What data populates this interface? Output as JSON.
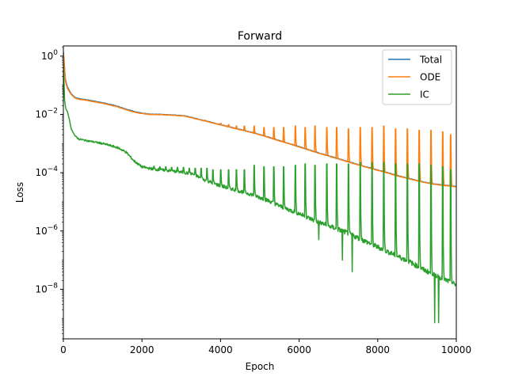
{
  "chart_data": {
    "type": "line",
    "title": "Forward",
    "xlabel": "Epoch",
    "ylabel": "Loss",
    "xlim": [
      0,
      10000
    ],
    "ylim_log10": [
      -9.7,
      0.35
    ],
    "yscale": "log",
    "grid": false,
    "legend_placement": "top-right",
    "x_ticks": [
      {
        "value": 0,
        "label": "0"
      },
      {
        "value": 2000,
        "label": "2000"
      },
      {
        "value": 4000,
        "label": "4000"
      },
      {
        "value": 6000,
        "label": "6000"
      },
      {
        "value": 8000,
        "label": "8000"
      },
      {
        "value": 10000,
        "label": "10000"
      }
    ],
    "y_ticks": [
      {
        "exp": 0,
        "base": "10",
        "sup": "0"
      },
      {
        "exp": -2,
        "base": "10",
        "sup": "−2"
      },
      {
        "exp": -4,
        "base": "10",
        "sup": "−4"
      },
      {
        "exp": -6,
        "base": "10",
        "sup": "−6"
      },
      {
        "exp": -8,
        "base": "10",
        "sup": "−8"
      }
    ],
    "series": [
      {
        "name": "Total",
        "color": "#1f77b4",
        "x": [
          0,
          50,
          100,
          200,
          300,
          400,
          600,
          800,
          1000,
          1200,
          1400,
          1600,
          1800,
          2000,
          2200,
          2500,
          2800,
          3100,
          3400,
          3700,
          4000,
          4300,
          4600,
          4900,
          5200,
          5500,
          5800,
          6100,
          6400,
          6700,
          7000,
          7300,
          7600,
          7900,
          8200,
          8500,
          8800,
          9100,
          9400,
          9700,
          10000
        ],
        "log10_y": [
          0.15,
          -0.8,
          -1.05,
          -1.3,
          -1.42,
          -1.46,
          -1.5,
          -1.55,
          -1.6,
          -1.66,
          -1.73,
          -1.82,
          -1.9,
          -1.96,
          -1.99,
          -2.0,
          -2.02,
          -2.05,
          -2.15,
          -2.25,
          -2.35,
          -2.45,
          -2.55,
          -2.65,
          -2.77,
          -2.9,
          -3.02,
          -3.15,
          -3.28,
          -3.4,
          -3.52,
          -3.64,
          -3.76,
          -3.87,
          -3.98,
          -4.1,
          -4.2,
          -4.3,
          -4.38,
          -4.43,
          -4.47
        ]
      },
      {
        "name": "ODE",
        "color": "#ff7f0e",
        "x": [
          0,
          50,
          100,
          200,
          300,
          400,
          600,
          800,
          1000,
          1200,
          1400,
          1600,
          1800,
          2000,
          2200,
          2500,
          2800,
          3100,
          3400,
          3700,
          4000,
          4300,
          4600,
          4900,
          5200,
          5500,
          5800,
          6100,
          6400,
          6700,
          7000,
          7300,
          7600,
          7900,
          8200,
          8500,
          8800,
          9100,
          9400,
          9700,
          10000
        ],
        "log10_y": [
          0.1,
          -0.85,
          -1.1,
          -1.32,
          -1.44,
          -1.48,
          -1.52,
          -1.57,
          -1.62,
          -1.68,
          -1.75,
          -1.84,
          -1.92,
          -1.97,
          -2.0,
          -2.01,
          -2.03,
          -2.06,
          -2.16,
          -2.26,
          -2.36,
          -2.46,
          -2.56,
          -2.66,
          -2.78,
          -2.91,
          -3.03,
          -3.16,
          -3.29,
          -3.41,
          -3.53,
          -3.65,
          -3.77,
          -3.88,
          -3.99,
          -4.11,
          -4.21,
          -4.31,
          -4.39,
          -4.44,
          -4.48
        ],
        "spike_epochs": [
          3600,
          3800,
          4000,
          4200,
          4400,
          4600,
          4850,
          5100,
          5350,
          5600,
          5900,
          6150,
          6400,
          6700,
          6950,
          7250,
          7550,
          7850,
          8150,
          8450,
          8750,
          9050,
          9350,
          9650,
          9850
        ],
        "spike_log10_peak": [
          -2.2,
          -2.3,
          -2.3,
          -2.35,
          -2.4,
          -2.4,
          -2.4,
          -2.45,
          -2.45,
          -2.45,
          -2.4,
          -2.45,
          -2.4,
          -2.45,
          -2.45,
          -2.5,
          -2.45,
          -2.45,
          -2.4,
          -2.5,
          -2.5,
          -2.55,
          -2.55,
          -2.6,
          -2.7
        ]
      },
      {
        "name": "IC",
        "color": "#2ca02c",
        "x": [
          0,
          30,
          60,
          100,
          150,
          200,
          300,
          400,
          600,
          800,
          1000,
          1200,
          1400,
          1600,
          1800,
          2000,
          2300,
          2600,
          3000,
          3300,
          3600,
          4000,
          4400,
          4800,
          5200,
          5600,
          6000,
          6400,
          6800,
          7200,
          7600,
          8000,
          8400,
          8800,
          9200,
          9600,
          10000
        ],
        "log10_y": [
          -0.3,
          -1.5,
          -1.8,
          -1.9,
          -2.15,
          -2.5,
          -2.75,
          -2.85,
          -2.9,
          -2.95,
          -3.0,
          -3.07,
          -3.15,
          -3.3,
          -3.6,
          -3.8,
          -3.88,
          -3.92,
          -3.98,
          -4.05,
          -4.25,
          -4.45,
          -4.6,
          -4.75,
          -4.95,
          -5.2,
          -5.4,
          -5.65,
          -5.85,
          -6.05,
          -6.3,
          -6.55,
          -6.8,
          -7.05,
          -7.35,
          -7.6,
          -7.85
        ],
        "spike_epochs": [
          2300,
          2450,
          2600,
          2750,
          2900,
          3050,
          3200,
          3350,
          3500,
          3650,
          3800,
          4000,
          4200,
          4400,
          4600,
          4850,
          5100,
          5350,
          5600,
          5900,
          6150,
          6400,
          6700,
          6950,
          7250,
          7550,
          7850,
          8150,
          8450,
          8750,
          9050,
          9350,
          9650,
          9850
        ],
        "spike_log10_peak": [
          -3.78,
          -3.8,
          -3.8,
          -3.82,
          -3.82,
          -3.82,
          -3.85,
          -3.85,
          -3.85,
          -3.85,
          -3.9,
          -3.9,
          -3.9,
          -3.9,
          -3.9,
          -3.75,
          -3.8,
          -3.8,
          -3.8,
          -3.75,
          -3.7,
          -3.75,
          -3.7,
          -3.7,
          -3.7,
          -3.65,
          -3.65,
          -3.65,
          -3.7,
          -3.7,
          -3.7,
          -3.75,
          -3.8,
          -3.9
        ],
        "dip_epochs": [
          6500,
          7100,
          7350,
          9450,
          9550
        ],
        "dip_log10_min": [
          -6.3,
          -7.0,
          -7.4,
          -9.15,
          -9.15
        ]
      }
    ]
  }
}
